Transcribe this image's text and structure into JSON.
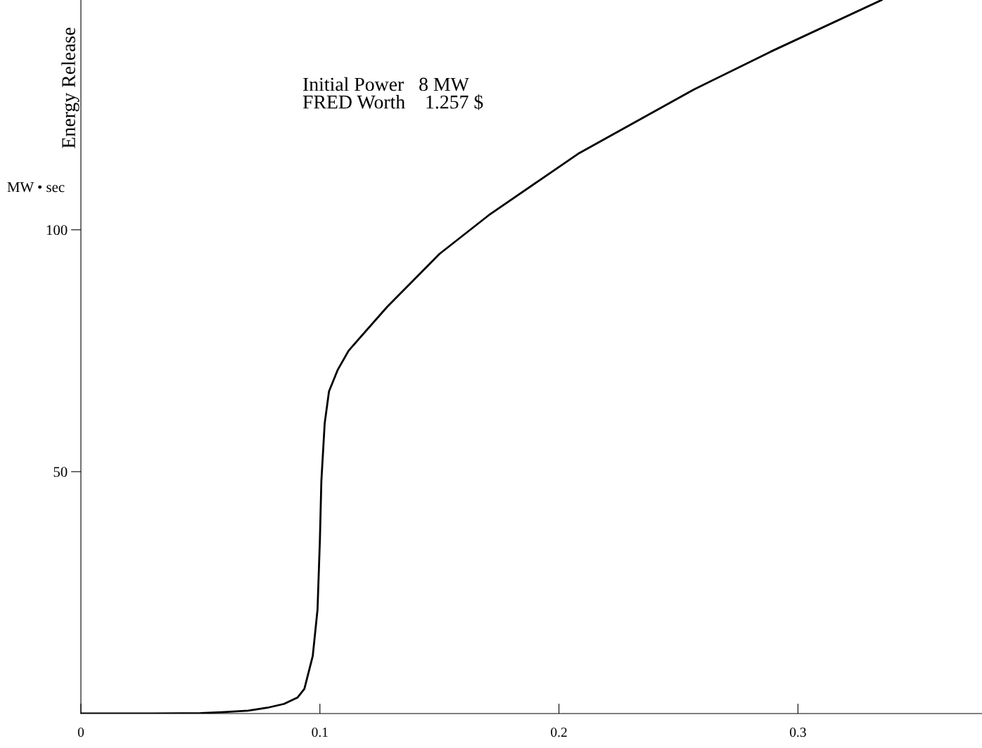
{
  "chart_data": {
    "type": "line",
    "ylabel": "Energy Release",
    "annotations": [
      "MW • sec",
      "Initial Power   8 MW\nFRED Worth    1.257 $"
    ],
    "x": [
      0,
      0.03,
      0.05,
      0.06,
      0.07,
      0.078,
      0.085,
      0.0906,
      0.0935,
      0.097,
      0.099,
      0.1,
      0.1006,
      0.102,
      0.1038,
      0.1074,
      0.112,
      0.128,
      0.15,
      0.1706,
      0.208,
      0.2565,
      0.2885,
      0.335
    ],
    "series": [
      {
        "color": "#000000",
        "values": [
          0,
          0,
          0.1,
          0.3,
          0.6,
          1.2,
          2,
          3.3,
          5.1,
          11.9,
          21.5,
          36,
          48,
          60,
          66.6,
          71,
          75,
          84,
          95,
          103,
          115.7,
          129,
          136.8,
          147.5
        ]
      }
    ],
    "xlim": [
      0,
      0.377
    ],
    "ylim": [
      0,
      147.5
    ],
    "xticks": [
      0,
      0.1,
      0.2,
      0.3
    ],
    "yticks": [
      50,
      100
    ],
    "grid": false,
    "legend": false,
    "marker": "none",
    "line_style": "solid"
  }
}
